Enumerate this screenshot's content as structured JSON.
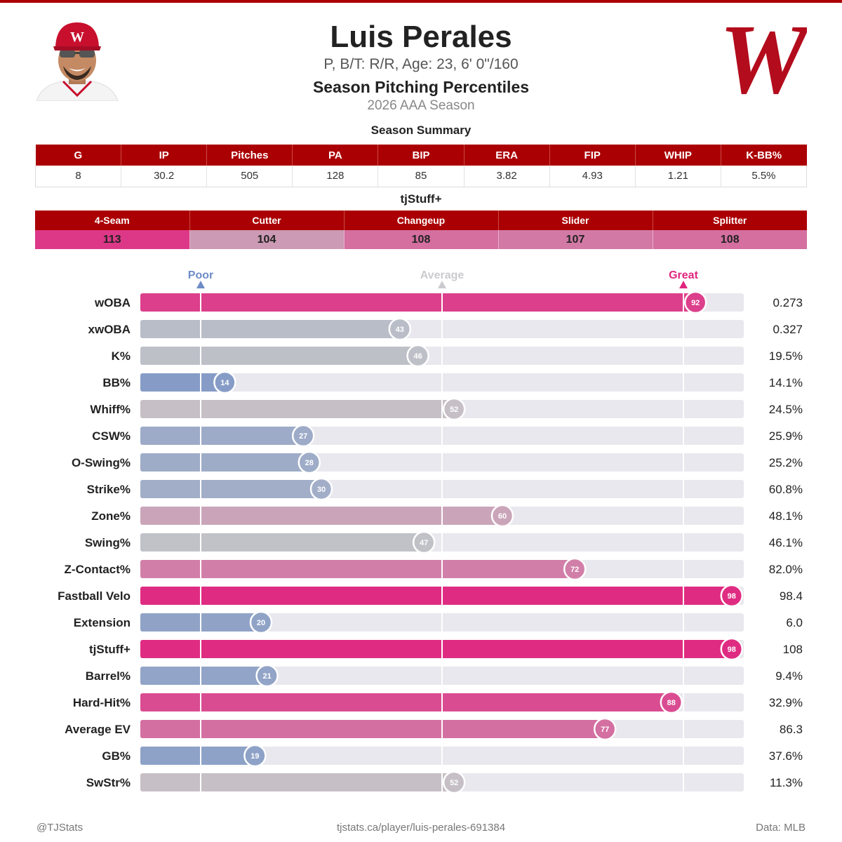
{
  "header": {
    "name": "Luis Perales",
    "info": "P, B/T: R/R, Age: 23, 6' 0\"/160",
    "report_title": "Season Pitching Percentiles",
    "season": "2026 AAA Season",
    "team_logo_letter": "W",
    "cap_logo_letter": "W"
  },
  "colors": {
    "accent_red": "#ab0003",
    "poor_blue": "#6d8cc7",
    "average_gray": "#c5c5c8",
    "great_pink": "#e0267f",
    "track_gray": "#e8e8ee"
  },
  "summary": {
    "title": "Season Summary",
    "headers": [
      "G",
      "IP",
      "Pitches",
      "PA",
      "BIP",
      "ERA",
      "FIP",
      "WHIP",
      "K-BB%"
    ],
    "values": [
      "8",
      "30.2",
      "505",
      "128",
      "85",
      "3.82",
      "4.93",
      "1.21",
      "5.5%"
    ]
  },
  "stuff": {
    "title": "tjStuff+",
    "headers": [
      "4-Seam",
      "Cutter",
      "Changeup",
      "Slider",
      "Splitter"
    ],
    "values": [
      "113",
      "104",
      "108",
      "107",
      "108"
    ]
  },
  "chart_data": {
    "type": "bar",
    "orientation": "horizontal",
    "xlim": [
      0,
      100
    ],
    "reference_marks": [
      {
        "label": "Poor",
        "value": 10
      },
      {
        "label": "Average",
        "value": 50
      },
      {
        "label": "Great",
        "value": 90
      }
    ],
    "categories": [
      "wOBA",
      "xwOBA",
      "K%",
      "BB%",
      "Whiff%",
      "CSW%",
      "O-Swing%",
      "Strike%",
      "Zone%",
      "Swing%",
      "Z-Contact%",
      "Fastball Velo",
      "Extension",
      "tjStuff+",
      "Barrel%",
      "Hard-Hit%",
      "Average EV",
      "GB%",
      "SwStr%"
    ],
    "percentiles": [
      92,
      43,
      46,
      14,
      52,
      27,
      28,
      30,
      60,
      47,
      72,
      98,
      20,
      98,
      21,
      88,
      77,
      19,
      52
    ],
    "stat_values": [
      "0.273",
      "0.327",
      "19.5%",
      "14.1%",
      "24.5%",
      "25.9%",
      "25.2%",
      "60.8%",
      "48.1%",
      "46.1%",
      "82.0%",
      "98.4",
      "6.0",
      "108",
      "9.4%",
      "32.9%",
      "86.3",
      "37.6%",
      "11.3%"
    ]
  },
  "footer": {
    "left": "@TJStats",
    "center": "tjstats.ca/player/luis-perales-691384",
    "right": "Data: MLB"
  }
}
